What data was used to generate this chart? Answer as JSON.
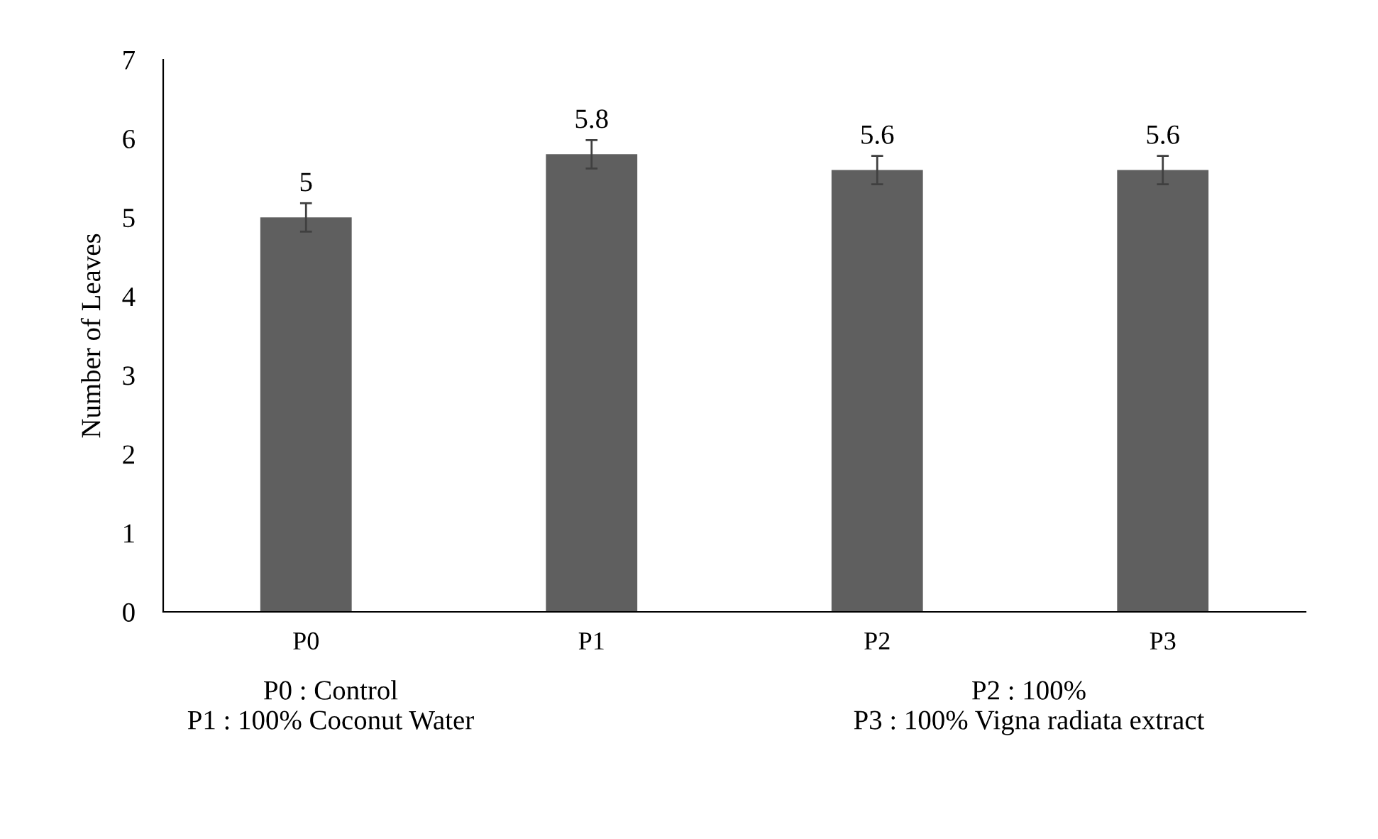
{
  "chart_data": {
    "type": "bar",
    "ylabel": "Number of Leaves",
    "categories": [
      "P0",
      "P1",
      "P2",
      "P3"
    ],
    "values": [
      5,
      5.8,
      5.6,
      5.6
    ],
    "errors": [
      0.18,
      0.18,
      0.18,
      0.18
    ],
    "color": "#5f5f5f",
    "ylim": [
      0,
      7
    ],
    "yticks": [
      0,
      1,
      2,
      3,
      4,
      5,
      6,
      7
    ],
    "data_labels": true,
    "grid": false,
    "legend": false,
    "annotations": [
      "P0 : Control",
      "P2 : 100%",
      "P1 : 100% Coconut Water",
      "P3 : 100% Vigna radiata extract"
    ]
  }
}
